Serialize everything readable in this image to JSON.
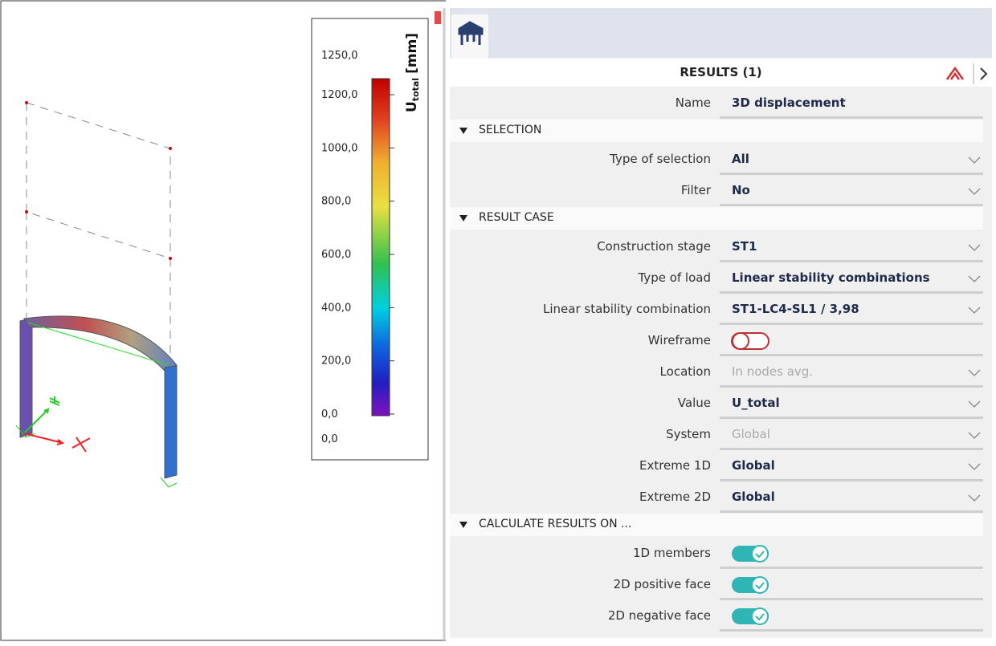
{
  "legend": {
    "title": "U",
    "title_sub": "total",
    "unit": "[mm]",
    "max_label": "1250,0",
    "scale_labels": [
      "1200,0",
      "1000,0",
      "800,0",
      "600,0",
      "400,0",
      "200,0",
      "0,0"
    ],
    "min_label": "0,0"
  },
  "panel": {
    "header": "RESULTS (1)",
    "items": [
      {
        "type": "row",
        "label": "Name",
        "value": "3D displacement",
        "dropdown": false,
        "muted": false
      },
      {
        "type": "section",
        "label": "SELECTION"
      },
      {
        "type": "row",
        "label": "Type of selection",
        "value": "All",
        "dropdown": true,
        "muted": false
      },
      {
        "type": "row",
        "label": "Filter",
        "value": "No",
        "dropdown": true,
        "muted": false
      },
      {
        "type": "section",
        "label": "RESULT CASE"
      },
      {
        "type": "row",
        "label": "Construction stage",
        "value": "ST1",
        "dropdown": true,
        "muted": false
      },
      {
        "type": "row",
        "label": "Type of load",
        "value": "Linear stability combinations",
        "dropdown": true,
        "muted": false
      },
      {
        "type": "row",
        "label": "Linear stability combination",
        "value": "ST1-LC4-SL1 / 3,98",
        "dropdown": true,
        "muted": false
      },
      {
        "type": "switch",
        "label": "Wireframe",
        "on": false
      },
      {
        "type": "row",
        "label": "Location",
        "value": "In nodes avg.",
        "dropdown": true,
        "muted": true
      },
      {
        "type": "row",
        "label": "Value",
        "value": "U_total",
        "dropdown": true,
        "muted": false
      },
      {
        "type": "row",
        "label": "System",
        "value": "Global",
        "dropdown": true,
        "muted": true
      },
      {
        "type": "row",
        "label": "Extreme 1D",
        "value": "Global",
        "dropdown": true,
        "muted": false
      },
      {
        "type": "row",
        "label": "Extreme 2D",
        "value": "Global",
        "dropdown": true,
        "muted": false
      },
      {
        "type": "section",
        "label": "CALCULATE RESULTS ON ..."
      },
      {
        "type": "switch",
        "label": "1D members",
        "on": true
      },
      {
        "type": "switch",
        "label": "2D positive face",
        "on": true
      },
      {
        "type": "switch",
        "label": "2D negative face",
        "on": true
      }
    ]
  }
}
